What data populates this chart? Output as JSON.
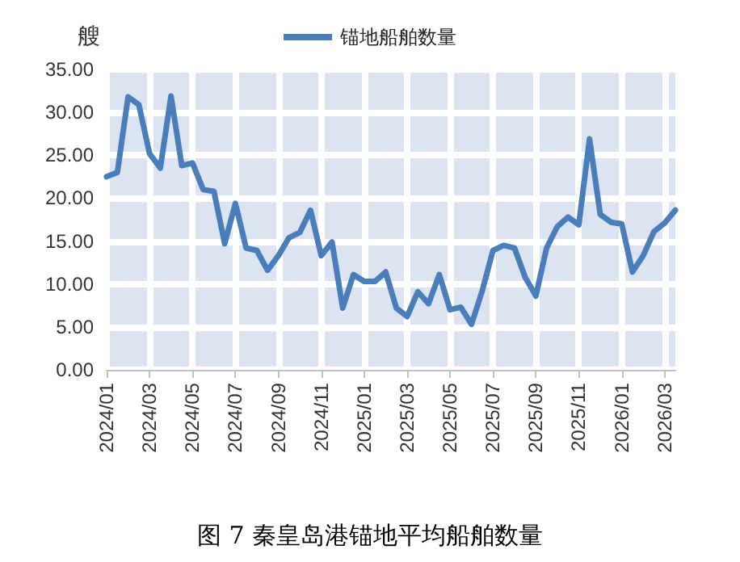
{
  "chart_data": {
    "type": "line",
    "title": "图 7 秦皇岛港锚地平均船舶数量",
    "ylabel": "艘",
    "categories": [
      "2024/01",
      null,
      null,
      null,
      "2024/03",
      null,
      null,
      null,
      "2024/05",
      null,
      null,
      null,
      "2024/07",
      null,
      null,
      null,
      "2024/09",
      null,
      null,
      null,
      "2024/11",
      null,
      null,
      null,
      "2025/01",
      null,
      null,
      null,
      "2025/03",
      null,
      null,
      null,
      "2025/05",
      null,
      null,
      null,
      "2025/07",
      null,
      null,
      null,
      "2025/09",
      null,
      null,
      null,
      "2025/11",
      null,
      null,
      null,
      "2026/01",
      null,
      null,
      null,
      "2026/03",
      null
    ],
    "series": [
      {
        "name": "锚地船舶数量",
        "color": "#4a7ebb",
        "values": [
          22.5,
          23.0,
          31.8,
          30.9,
          25.2,
          23.5,
          31.9,
          23.8,
          24.1,
          21.0,
          20.8,
          14.7,
          19.4,
          14.2,
          13.9,
          11.6,
          13.3,
          15.4,
          16.0,
          18.6,
          13.3,
          14.9,
          7.2,
          11.1,
          10.3,
          10.3,
          11.4,
          7.2,
          6.2,
          9.1,
          7.7,
          11.1,
          7.0,
          7.3,
          5.3,
          9.2,
          13.9,
          14.5,
          14.2,
          10.8,
          8.6,
          14.2,
          16.7,
          17.8,
          16.9,
          26.9,
          18.1,
          17.2,
          17.0,
          11.4,
          13.3,
          16.1,
          17.1,
          18.6
        ]
      }
    ],
    "ylim": [
      0,
      35
    ],
    "yticks": [
      {
        "value": 0,
        "label": "0.00"
      },
      {
        "value": 5,
        "label": "5.00"
      },
      {
        "value": 10,
        "label": "10.00"
      },
      {
        "value": 15,
        "label": "15.00"
      },
      {
        "value": 20,
        "label": "20.00"
      },
      {
        "value": 25,
        "label": "25.00"
      },
      {
        "value": 30,
        "label": "30.00"
      },
      {
        "value": 35,
        "label": "35.00"
      }
    ],
    "grid": true,
    "legend": "top",
    "marker": "none",
    "line_style": "solid"
  }
}
